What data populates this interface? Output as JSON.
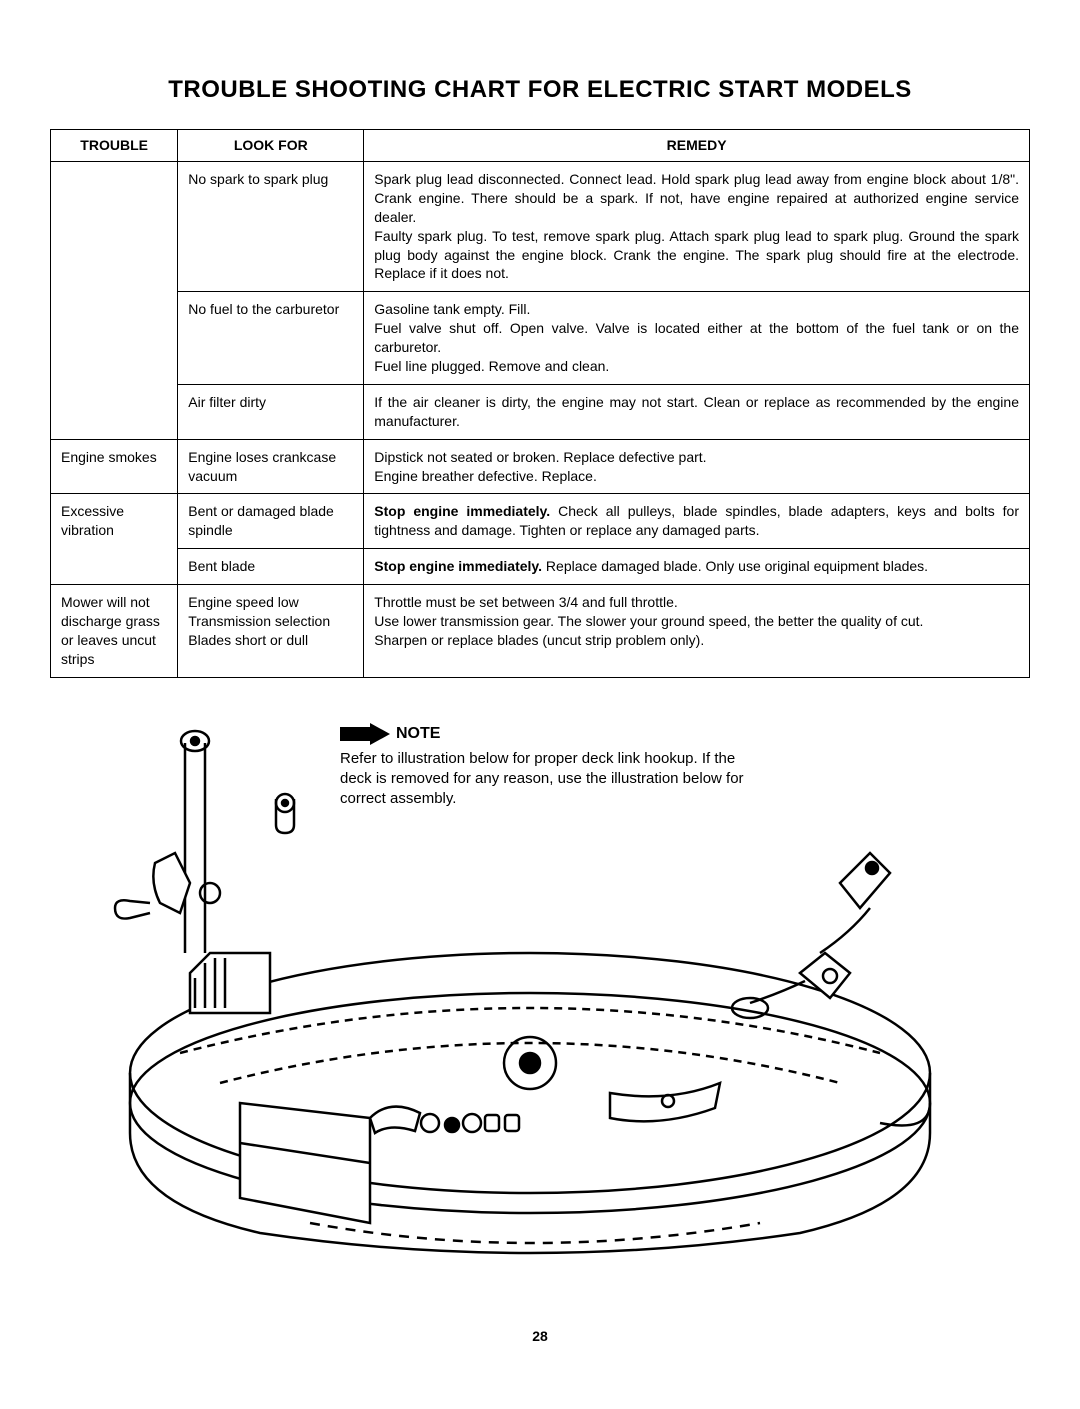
{
  "title": "TROUBLE SHOOTING CHART FOR ELECTRIC START MODELS",
  "headers": {
    "trouble": "TROUBLE",
    "lookfor": "LOOK FOR",
    "remedy": "REMEDY"
  },
  "rows": [
    {
      "trouble": "",
      "trouble_rowspan": 3,
      "lookfor": "No spark to spark plug",
      "remedy": "Spark plug lead disconnected. Connect lead. Hold spark plug lead away from engine block about 1/8\". Crank engine. There should be a spark. If not, have engine repaired at authorized engine service dealer.\nFaulty spark plug. To test, remove spark plug. Attach spark plug lead to spark plug. Ground the spark plug body against the engine block. Crank the engine. The spark plug should fire at the electrode. Replace if it does not."
    },
    {
      "lookfor": "No fuel to the carburetor",
      "remedy": "Gasoline tank empty. Fill.\nFuel valve shut off. Open valve. Valve is located either at the bottom of the fuel tank or on the carburetor.\nFuel line plugged. Remove and clean."
    },
    {
      "lookfor": "Air filter dirty",
      "remedy": "If the air cleaner is dirty, the engine may not start. Clean or replace as recommended by the engine manufacturer."
    },
    {
      "trouble": "Engine smokes",
      "trouble_rowspan": 1,
      "lookfor": "Engine loses crankcase vacuum",
      "remedy": "Dipstick not seated or broken. Replace defective part.\nEngine breather defective. Replace."
    },
    {
      "trouble": "Excessive vibration",
      "trouble_rowspan": 2,
      "lookfor": "Bent or damaged blade spindle",
      "remedy_bold_lead": "Stop engine immediately.",
      "remedy": " Check all pulleys, blade spindles, blade adapters, keys and bolts for tightness and damage. Tighten or replace any damaged parts."
    },
    {
      "lookfor": "Bent blade",
      "remedy_bold_lead": "Stop engine immediately.",
      "remedy": " Replace damaged blade. Only use original equipment blades."
    },
    {
      "trouble": "Mower will not discharge grass or leaves uncut strips",
      "trouble_rowspan": 1,
      "lookfor": "Engine speed low\nTransmission selection\nBlades short or dull",
      "remedy": "Throttle must be set between 3/4 and full throttle.\nUse lower transmission gear. The slower your ground speed, the better the quality of cut.\nSharpen or replace blades (uncut strip problem only)."
    }
  ],
  "note": {
    "label": "NOTE",
    "text": "Refer to illustration below for proper deck link hookup. If the deck is removed for any reason, use the illustration below for correct assembly."
  },
  "page_number": "28",
  "colors": {
    "text": "#000000",
    "background": "#ffffff",
    "border": "#000000"
  },
  "typography": {
    "title_fontsize": 24,
    "body_fontsize": 14,
    "note_fontsize": 15,
    "font_family": "Arial, Helvetica, sans-serif"
  }
}
